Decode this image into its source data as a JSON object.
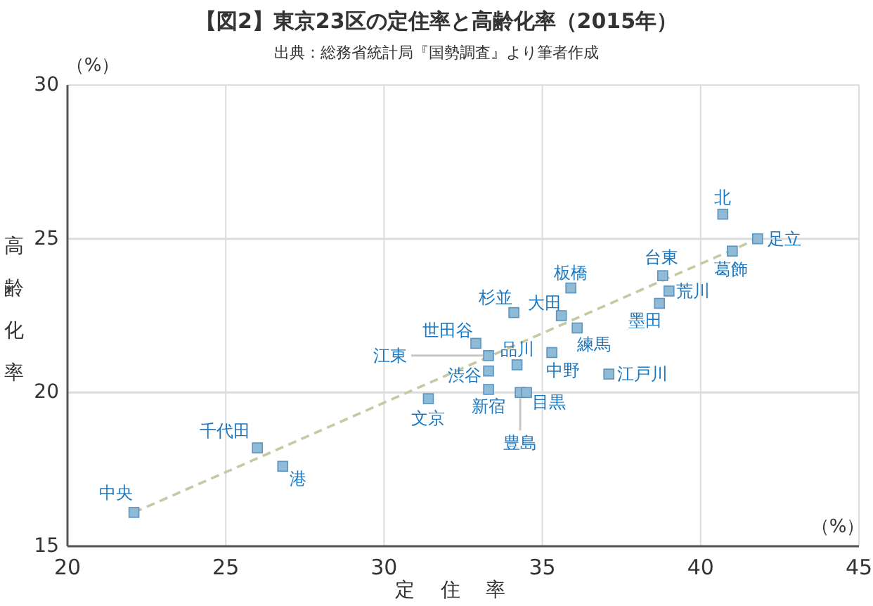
{
  "chart_data": {
    "type": "scatter",
    "title": "【図2】東京23区の定住率と高齢化率（2015年）",
    "subtitle": "出典：総務省統計局『国勢調査』より筆者作成",
    "xlabel": "定住率",
    "ylabel": "高齢化率",
    "xlim": [
      20,
      45
    ],
    "ylim": [
      15,
      30
    ],
    "xticks": [
      20,
      25,
      30,
      35,
      40,
      45
    ],
    "yticks": [
      15,
      20,
      25,
      30
    ],
    "grid": true,
    "marker": "square",
    "series": [
      {
        "color": "#8fbbd6",
        "x": [
          40.7,
          41.8,
          41.0,
          38.8,
          39.0,
          38.7,
          35.9,
          35.6,
          36.1,
          34.1,
          32.9,
          33.3,
          34.2,
          35.3,
          33.3,
          33.3,
          34.3,
          34.5,
          37.1,
          31.4,
          26.0,
          26.8,
          22.1
        ],
        "values": [
          25.8,
          25.0,
          24.6,
          23.8,
          23.3,
          22.9,
          23.4,
          22.5,
          22.1,
          22.6,
          21.6,
          21.2,
          20.9,
          21.3,
          20.7,
          20.1,
          20.0,
          20.0,
          20.6,
          19.8,
          18.2,
          17.6,
          16.1
        ]
      },
      {
        "type": "line",
        "color": "#c5c9a4",
        "line_style": "dashed",
        "marker": "none",
        "x": [
          22.1,
          41.8
        ],
        "values": [
          16.1,
          25.0
        ]
      }
    ],
    "annotations": [
      "（%）",
      "（%）",
      {
        "text": "北",
        "x": 40.7,
        "y": 25.8
      },
      {
        "text": "足立",
        "x": 41.8,
        "y": 25.0
      },
      {
        "text": "葛飾",
        "x": 41.0,
        "y": 24.6
      },
      {
        "text": "台東",
        "x": 38.8,
        "y": 23.8
      },
      {
        "text": "荒川",
        "x": 39.0,
        "y": 23.3
      },
      {
        "text": "墨田",
        "x": 38.7,
        "y": 22.9
      },
      {
        "text": "板橋",
        "x": 35.9,
        "y": 23.4
      },
      {
        "text": "大田",
        "x": 35.6,
        "y": 22.5
      },
      {
        "text": "練馬",
        "x": 36.1,
        "y": 22.1
      },
      {
        "text": "杉並",
        "x": 34.1,
        "y": 22.6
      },
      {
        "text": "世田谷",
        "x": 32.9,
        "y": 21.6
      },
      {
        "text": "江東",
        "x": 33.3,
        "y": 21.2
      },
      {
        "text": "品川",
        "x": 34.2,
        "y": 20.9
      },
      {
        "text": "中野",
        "x": 35.3,
        "y": 21.3
      },
      {
        "text": "渋谷",
        "x": 33.3,
        "y": 20.7
      },
      {
        "text": "新宿",
        "x": 33.3,
        "y": 20.1
      },
      {
        "text": "豊島",
        "x": 34.3,
        "y": 20.0
      },
      {
        "text": "目黒",
        "x": 34.5,
        "y": 20.0
      },
      {
        "text": "江戸川",
        "x": 37.1,
        "y": 20.6
      },
      {
        "text": "文京",
        "x": 31.4,
        "y": 19.8
      },
      {
        "text": "千代田",
        "x": 26.0,
        "y": 18.2
      },
      {
        "text": "港",
        "x": 26.8,
        "y": 17.6
      },
      {
        "text": "中央",
        "x": 22.1,
        "y": 16.1
      }
    ]
  }
}
